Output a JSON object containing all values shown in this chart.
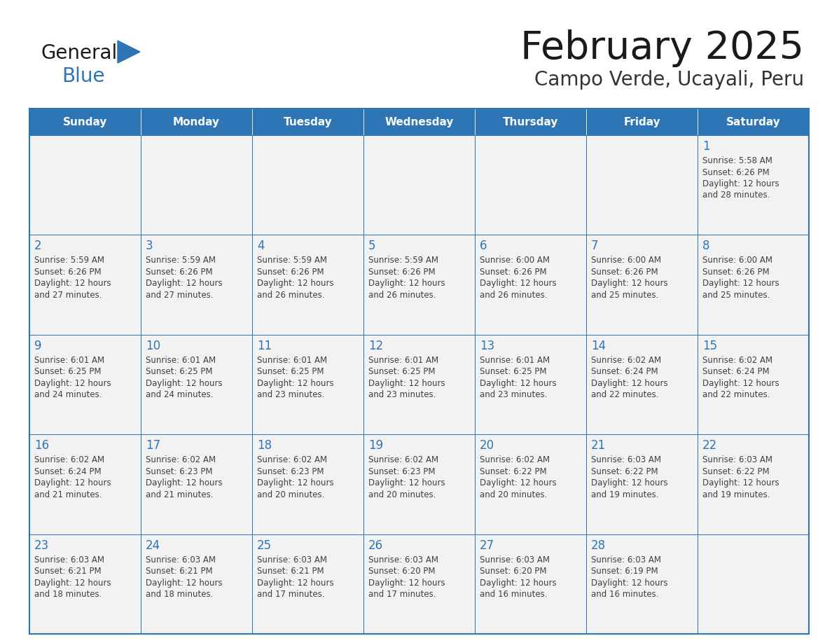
{
  "title": "February 2025",
  "subtitle": "Campo Verde, Ucayali, Peru",
  "header_bg": "#2E75B6",
  "header_text": "#FFFFFF",
  "cell_bg": "#F2F2F2",
  "cell_bg_alt": "#FFFFFF",
  "border_color": "#2E75B6",
  "day_number_color": "#2E75B6",
  "cell_text_color": "#404040",
  "days_of_week": [
    "Sunday",
    "Monday",
    "Tuesday",
    "Wednesday",
    "Thursday",
    "Friday",
    "Saturday"
  ],
  "title_color": "#1a1a1a",
  "subtitle_color": "#333333",
  "logo_general_color": "#1a1a1a",
  "logo_blue_color": "#2E75B6",
  "calendar_data": [
    [
      null,
      null,
      null,
      null,
      null,
      null,
      {
        "day": 1,
        "sunrise": "5:58 AM",
        "sunset": "6:26 PM",
        "daylight_h": "12 hours",
        "daylight_m": "and 28 minutes."
      }
    ],
    [
      {
        "day": 2,
        "sunrise": "5:59 AM",
        "sunset": "6:26 PM",
        "daylight_h": "12 hours",
        "daylight_m": "and 27 minutes."
      },
      {
        "day": 3,
        "sunrise": "5:59 AM",
        "sunset": "6:26 PM",
        "daylight_h": "12 hours",
        "daylight_m": "and 27 minutes."
      },
      {
        "day": 4,
        "sunrise": "5:59 AM",
        "sunset": "6:26 PM",
        "daylight_h": "12 hours",
        "daylight_m": "and 26 minutes."
      },
      {
        "day": 5,
        "sunrise": "5:59 AM",
        "sunset": "6:26 PM",
        "daylight_h": "12 hours",
        "daylight_m": "and 26 minutes."
      },
      {
        "day": 6,
        "sunrise": "6:00 AM",
        "sunset": "6:26 PM",
        "daylight_h": "12 hours",
        "daylight_m": "and 26 minutes."
      },
      {
        "day": 7,
        "sunrise": "6:00 AM",
        "sunset": "6:26 PM",
        "daylight_h": "12 hours",
        "daylight_m": "and 25 minutes."
      },
      {
        "day": 8,
        "sunrise": "6:00 AM",
        "sunset": "6:26 PM",
        "daylight_h": "12 hours",
        "daylight_m": "and 25 minutes."
      }
    ],
    [
      {
        "day": 9,
        "sunrise": "6:01 AM",
        "sunset": "6:25 PM",
        "daylight_h": "12 hours",
        "daylight_m": "and 24 minutes."
      },
      {
        "day": 10,
        "sunrise": "6:01 AM",
        "sunset": "6:25 PM",
        "daylight_h": "12 hours",
        "daylight_m": "and 24 minutes."
      },
      {
        "day": 11,
        "sunrise": "6:01 AM",
        "sunset": "6:25 PM",
        "daylight_h": "12 hours",
        "daylight_m": "and 23 minutes."
      },
      {
        "day": 12,
        "sunrise": "6:01 AM",
        "sunset": "6:25 PM",
        "daylight_h": "12 hours",
        "daylight_m": "and 23 minutes."
      },
      {
        "day": 13,
        "sunrise": "6:01 AM",
        "sunset": "6:25 PM",
        "daylight_h": "12 hours",
        "daylight_m": "and 23 minutes."
      },
      {
        "day": 14,
        "sunrise": "6:02 AM",
        "sunset": "6:24 PM",
        "daylight_h": "12 hours",
        "daylight_m": "and 22 minutes."
      },
      {
        "day": 15,
        "sunrise": "6:02 AM",
        "sunset": "6:24 PM",
        "daylight_h": "12 hours",
        "daylight_m": "and 22 minutes."
      }
    ],
    [
      {
        "day": 16,
        "sunrise": "6:02 AM",
        "sunset": "6:24 PM",
        "daylight_h": "12 hours",
        "daylight_m": "and 21 minutes."
      },
      {
        "day": 17,
        "sunrise": "6:02 AM",
        "sunset": "6:23 PM",
        "daylight_h": "12 hours",
        "daylight_m": "and 21 minutes."
      },
      {
        "day": 18,
        "sunrise": "6:02 AM",
        "sunset": "6:23 PM",
        "daylight_h": "12 hours",
        "daylight_m": "and 20 minutes."
      },
      {
        "day": 19,
        "sunrise": "6:02 AM",
        "sunset": "6:23 PM",
        "daylight_h": "12 hours",
        "daylight_m": "and 20 minutes."
      },
      {
        "day": 20,
        "sunrise": "6:02 AM",
        "sunset": "6:22 PM",
        "daylight_h": "12 hours",
        "daylight_m": "and 20 minutes."
      },
      {
        "day": 21,
        "sunrise": "6:03 AM",
        "sunset": "6:22 PM",
        "daylight_h": "12 hours",
        "daylight_m": "and 19 minutes."
      },
      {
        "day": 22,
        "sunrise": "6:03 AM",
        "sunset": "6:22 PM",
        "daylight_h": "12 hours",
        "daylight_m": "and 19 minutes."
      }
    ],
    [
      {
        "day": 23,
        "sunrise": "6:03 AM",
        "sunset": "6:21 PM",
        "daylight_h": "12 hours",
        "daylight_m": "and 18 minutes."
      },
      {
        "day": 24,
        "sunrise": "6:03 AM",
        "sunset": "6:21 PM",
        "daylight_h": "12 hours",
        "daylight_m": "and 18 minutes."
      },
      {
        "day": 25,
        "sunrise": "6:03 AM",
        "sunset": "6:21 PM",
        "daylight_h": "12 hours",
        "daylight_m": "and 17 minutes."
      },
      {
        "day": 26,
        "sunrise": "6:03 AM",
        "sunset": "6:20 PM",
        "daylight_h": "12 hours",
        "daylight_m": "and 17 minutes."
      },
      {
        "day": 27,
        "sunrise": "6:03 AM",
        "sunset": "6:20 PM",
        "daylight_h": "12 hours",
        "daylight_m": "and 16 minutes."
      },
      {
        "day": 28,
        "sunrise": "6:03 AM",
        "sunset": "6:19 PM",
        "daylight_h": "12 hours",
        "daylight_m": "and 16 minutes."
      },
      null
    ]
  ]
}
